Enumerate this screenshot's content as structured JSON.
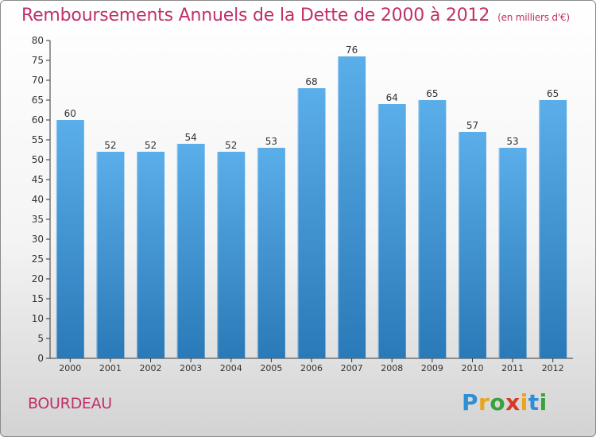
{
  "title": "Remboursements Annuels de la Dette de 2000 à 2012",
  "unit": "(en milliers d'€)",
  "place": "BOURDEAU",
  "logo": {
    "letters": [
      "P",
      "r",
      "o",
      "x",
      "i",
      "t",
      "i"
    ],
    "colors": [
      "#2f8fd6",
      "#e8a41c",
      "#3aa23a",
      "#d83a2a",
      "#e8a41c",
      "#2f8fd6",
      "#3aa23a"
    ]
  },
  "colors": {
    "bar_top": "#5aaee9",
    "bar_bottom": "#2a79b8",
    "axis": "#333333",
    "text": "#333333",
    "accent": "#c0306a"
  },
  "chart_data": {
    "type": "bar",
    "title": "Remboursements Annuels de la Dette de 2000 à 2012",
    "xlabel": "",
    "ylabel": "",
    "categories": [
      "2000",
      "2001",
      "2002",
      "2003",
      "2004",
      "2005",
      "2006",
      "2007",
      "2008",
      "2009",
      "2010",
      "2011",
      "2012"
    ],
    "values": [
      60,
      52,
      52,
      54,
      52,
      53,
      68,
      76,
      64,
      65,
      57,
      53,
      65
    ],
    "ylim": [
      0,
      80
    ],
    "yticks": [
      0,
      5,
      10,
      15,
      20,
      25,
      30,
      35,
      40,
      45,
      50,
      55,
      60,
      65,
      70,
      75,
      80
    ],
    "grid": false,
    "legend": "none"
  }
}
